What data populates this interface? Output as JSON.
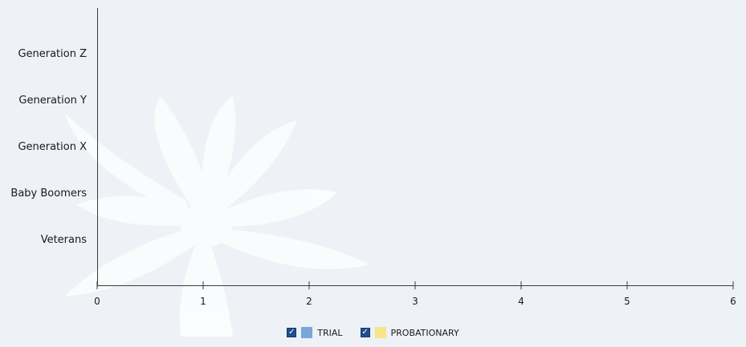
{
  "chart_data": {
    "type": "bar",
    "orientation": "horizontal",
    "categories": [
      "Generation Z",
      "Generation Y",
      "Generation X",
      "Baby Boomers",
      "Veterans"
    ],
    "series": [
      {
        "name": "TRIAL",
        "values": [
          0,
          0,
          0,
          0,
          0
        ],
        "color": "#7aa6dc",
        "checked": true
      },
      {
        "name": "PROBATIONARY",
        "values": [
          0,
          0,
          0,
          0,
          0
        ],
        "color": "#f7e58a",
        "checked": true
      }
    ],
    "x_ticks": [
      "0",
      "1",
      "2",
      "3",
      "4",
      "5",
      "6"
    ],
    "xlim": [
      0,
      6
    ],
    "grid": false,
    "legend_position": "bottom"
  }
}
